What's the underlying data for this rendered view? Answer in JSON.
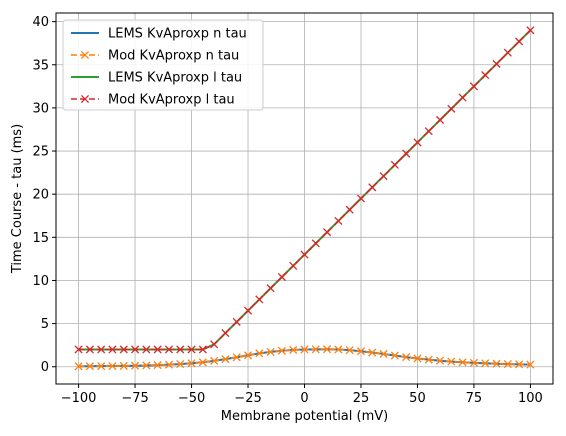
{
  "chart_data": {
    "type": "line",
    "xlabel": "Membrane potential (mV)",
    "ylabel": "Time Course - tau (ms)",
    "xlim": [
      -110,
      110
    ],
    "ylim": [
      -2,
      41
    ],
    "xticks": [
      -100,
      -75,
      -50,
      -25,
      0,
      25,
      50,
      75,
      100
    ],
    "yticks": [
      0,
      5,
      10,
      15,
      20,
      25,
      30,
      35,
      40
    ],
    "grid": true,
    "legend_position": "top-left",
    "x": [
      -100,
      -95,
      -90,
      -85,
      -80,
      -75,
      -70,
      -65,
      -60,
      -55,
      -50,
      -45,
      -40,
      -35,
      -30,
      -25,
      -20,
      -15,
      -10,
      -5,
      0,
      5,
      10,
      15,
      20,
      25,
      30,
      35,
      40,
      45,
      50,
      55,
      60,
      65,
      70,
      75,
      80,
      85,
      90,
      95,
      100
    ],
    "series": [
      {
        "name": "LEMS KvAproxp n tau",
        "style": "solid",
        "color": "#1f77b4",
        "marker": "none",
        "values": [
          0.05,
          0.06,
          0.07,
          0.08,
          0.1,
          0.12,
          0.15,
          0.19,
          0.24,
          0.31,
          0.4,
          0.52,
          0.68,
          0.88,
          1.1,
          1.33,
          1.55,
          1.72,
          1.85,
          1.95,
          2.0,
          2.02,
          2.03,
          2.0,
          1.92,
          1.8,
          1.65,
          1.48,
          1.3,
          1.12,
          0.96,
          0.82,
          0.7,
          0.6,
          0.52,
          0.45,
          0.4,
          0.35,
          0.31,
          0.28,
          0.25
        ]
      },
      {
        "name": "Mod KvAproxp n tau",
        "style": "dashed",
        "color": "#ff7f0e",
        "marker": "x",
        "values": [
          0.05,
          0.06,
          0.07,
          0.08,
          0.1,
          0.12,
          0.15,
          0.19,
          0.24,
          0.31,
          0.4,
          0.52,
          0.68,
          0.88,
          1.1,
          1.33,
          1.55,
          1.72,
          1.85,
          1.95,
          2.0,
          2.02,
          2.03,
          2.0,
          1.92,
          1.8,
          1.65,
          1.48,
          1.3,
          1.12,
          0.96,
          0.82,
          0.7,
          0.6,
          0.52,
          0.45,
          0.4,
          0.35,
          0.31,
          0.28,
          0.25
        ]
      },
      {
        "name": "LEMS KvAproxp l tau",
        "style": "solid",
        "color": "#2ca02c",
        "marker": "none",
        "values": [
          2.0,
          2.0,
          2.0,
          2.0,
          2.0,
          2.0,
          2.0,
          2.0,
          2.0,
          2.0,
          2.0,
          2.0,
          2.6,
          3.9,
          5.2,
          6.5,
          7.8,
          9.1,
          10.4,
          11.7,
          13.0,
          14.3,
          15.6,
          16.9,
          18.2,
          19.5,
          20.8,
          22.1,
          23.4,
          24.7,
          26.0,
          27.3,
          28.6,
          29.9,
          31.2,
          32.5,
          33.8,
          35.1,
          36.4,
          37.7,
          39.0
        ]
      },
      {
        "name": "Mod KvAproxp l tau",
        "style": "dashed",
        "color": "#d62728",
        "marker": "x",
        "values": [
          2.0,
          2.0,
          2.0,
          2.0,
          2.0,
          2.0,
          2.0,
          2.0,
          2.0,
          2.0,
          2.0,
          2.0,
          2.6,
          3.9,
          5.2,
          6.5,
          7.8,
          9.1,
          10.4,
          11.7,
          13.0,
          14.3,
          15.6,
          16.9,
          18.2,
          19.5,
          20.8,
          22.1,
          23.4,
          24.7,
          26.0,
          27.3,
          28.6,
          29.9,
          31.2,
          32.5,
          33.8,
          35.1,
          36.4,
          37.7,
          39.0
        ]
      }
    ]
  }
}
